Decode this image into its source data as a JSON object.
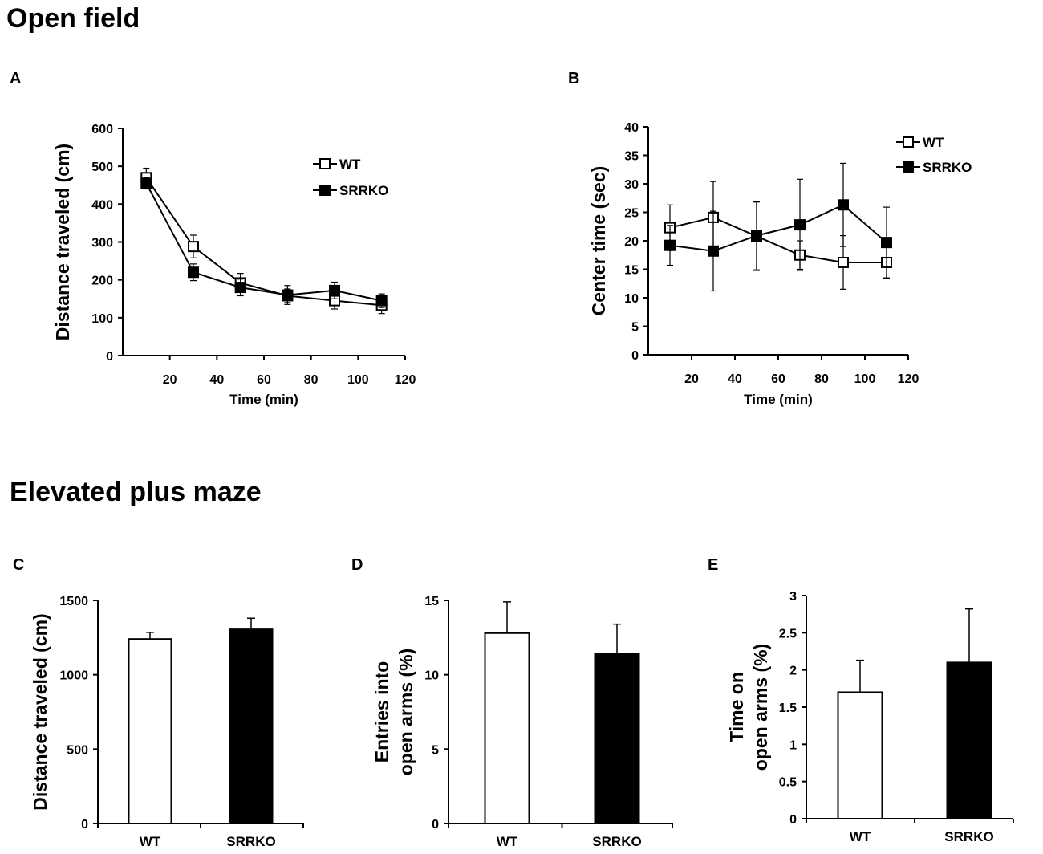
{
  "sections": {
    "open_field": "Open field",
    "elevated_plus_maze": "Elevated plus maze"
  },
  "panels": [
    "A",
    "B",
    "C",
    "D",
    "E"
  ],
  "colors": {
    "wt_fill": "#ffffff",
    "srrko_fill": "#000000",
    "axis": "#000000"
  },
  "chart_data": [
    {
      "id": "A",
      "type": "line",
      "title": "",
      "xlabel": "Time (min)",
      "ylabel": [
        "Distance traveled (cm)"
      ],
      "x": [
        10,
        30,
        50,
        70,
        90,
        110
      ],
      "xlim": [
        0,
        120
      ],
      "xticks": [
        20,
        40,
        60,
        80,
        100,
        120
      ],
      "ylim": [
        0,
        600
      ],
      "yticks": [
        0,
        100,
        200,
        300,
        400,
        500,
        600
      ],
      "legend_position": "top-right",
      "series": [
        {
          "name": "WT",
          "marker": "open-square",
          "values": [
            470,
            288,
            192,
            158,
            145,
            133
          ],
          "errors": [
            25,
            30,
            25,
            18,
            22,
            22
          ]
        },
        {
          "name": "SRRKO",
          "marker": "filled-square",
          "values": [
            455,
            220,
            180,
            160,
            172,
            145
          ],
          "errors": [
            15,
            22,
            22,
            25,
            22,
            18
          ]
        }
      ]
    },
    {
      "id": "B",
      "type": "line",
      "title": "",
      "xlabel": "Time (min)",
      "ylabel": [
        "Center time (sec)"
      ],
      "x": [
        10,
        30,
        50,
        70,
        90,
        110
      ],
      "xlim": [
        0,
        120
      ],
      "xticks": [
        20,
        40,
        60,
        80,
        100,
        120
      ],
      "ylim": [
        0,
        40
      ],
      "yticks": [
        0,
        5,
        10,
        15,
        20,
        25,
        30,
        35,
        40
      ],
      "legend_position": "top-right",
      "series": [
        {
          "name": "WT",
          "marker": "open-square",
          "values": [
            22.3,
            24.1,
            20.8,
            17.5,
            16.2,
            16.2
          ],
          "errors": [
            4,
            6.3,
            6,
            2.5,
            4.7,
            2.8
          ]
        },
        {
          "name": "SRRKO",
          "marker": "filled-square",
          "values": [
            19.2,
            18.2,
            20.9,
            22.8,
            26.3,
            19.7
          ],
          "errors": [
            3.5,
            7,
            6,
            8,
            7.3,
            6.2
          ]
        }
      ]
    },
    {
      "id": "C",
      "type": "bar",
      "title": "",
      "xlabel": "",
      "ylabel": [
        "Distance traveled (cm)"
      ],
      "categories": [
        "WT",
        "SRRKO"
      ],
      "values": [
        1240,
        1305
      ],
      "errors": [
        45,
        75
      ],
      "ylim": [
        0,
        1500
      ],
      "yticks": [
        0,
        500,
        1000,
        1500
      ]
    },
    {
      "id": "D",
      "type": "bar",
      "title": "",
      "xlabel": "",
      "ylabel": [
        "Entries into",
        "open arms (%)"
      ],
      "categories": [
        "WT",
        "SRRKO"
      ],
      "values": [
        12.8,
        11.4
      ],
      "errors": [
        2.1,
        2.0
      ],
      "ylim": [
        0,
        15
      ],
      "yticks": [
        0,
        5,
        10,
        15
      ]
    },
    {
      "id": "E",
      "type": "bar",
      "title": "",
      "xlabel": "",
      "ylabel": [
        "Time on",
        "open arms (%)"
      ],
      "categories": [
        "WT",
        "SRRKO"
      ],
      "values": [
        1.7,
        2.1
      ],
      "errors": [
        0.43,
        0.72
      ],
      "ylim": [
        0,
        3
      ],
      "yticks": [
        0,
        0.5,
        1,
        1.5,
        2,
        2.5,
        3
      ]
    }
  ]
}
